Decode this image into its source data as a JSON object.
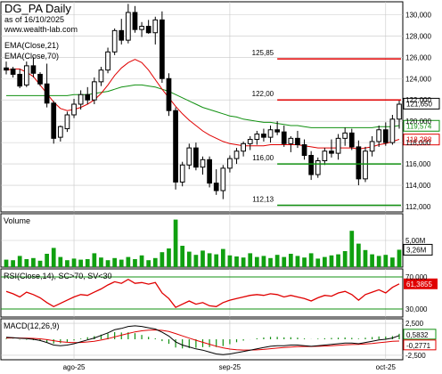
{
  "header": {
    "title": "DG_PA Daily",
    "date_line": "as of 16/10/2025",
    "site": "www.wealth-lab.com"
  },
  "colors": {
    "frame": "#000000",
    "grid": "#c8c8c8",
    "ema21": "#e00000",
    "ema70": "#109010",
    "resistance": "#e00000",
    "support": "#109010",
    "volume": "#10a010",
    "rsi_line": "#e00000",
    "rsi_band": "#109010",
    "macd_line": "#000000",
    "macd_signal": "#e00000",
    "macd_hist": "#109010",
    "close_tag": "#000000",
    "ema70_tag": "#109010",
    "ema21_tag": "#e00000"
  },
  "chart_data": [
    {
      "type": "candlestick",
      "panel": "price",
      "legend": [
        "EMA(Close,21)",
        "EMA(Close,70)"
      ],
      "ylim": [
        111.5,
        131.2
      ],
      "y_ticks": [
        "130,000",
        "128,000",
        "126,000",
        "124,000",
        "122,000",
        "120,000",
        "118,000",
        "116,000",
        "114,000",
        "112,000"
      ],
      "y_tick_values": [
        130,
        128,
        126,
        124,
        122,
        120,
        118,
        116,
        114,
        112
      ],
      "x_labels": [
        "ago-25",
        "sep-25",
        "oct-25"
      ],
      "x_label_bar_index": [
        10,
        33,
        56
      ],
      "candles": [
        {
          "o": 125.0,
          "h": 125.6,
          "l": 124.4,
          "c": 124.8
        },
        {
          "o": 124.9,
          "h": 125.1,
          "l": 124.1,
          "c": 124.4
        },
        {
          "o": 124.4,
          "h": 124.9,
          "l": 123.1,
          "c": 123.3
        },
        {
          "o": 123.4,
          "h": 125.6,
          "l": 123.2,
          "c": 125.2
        },
        {
          "o": 125.2,
          "h": 126.0,
          "l": 124.1,
          "c": 124.5
        },
        {
          "o": 124.4,
          "h": 124.6,
          "l": 123.3,
          "c": 123.5
        },
        {
          "o": 123.5,
          "h": 125.4,
          "l": 121.3,
          "c": 121.7
        },
        {
          "o": 121.7,
          "h": 121.9,
          "l": 117.9,
          "c": 118.4
        },
        {
          "o": 118.5,
          "h": 119.6,
          "l": 118.1,
          "c": 119.5
        },
        {
          "o": 119.3,
          "h": 120.9,
          "l": 119.0,
          "c": 120.6
        },
        {
          "o": 120.6,
          "h": 122.1,
          "l": 120.3,
          "c": 121.6
        },
        {
          "o": 121.6,
          "h": 122.9,
          "l": 121.1,
          "c": 122.5
        },
        {
          "o": 122.5,
          "h": 123.2,
          "l": 121.6,
          "c": 122.0
        },
        {
          "o": 122.0,
          "h": 124.1,
          "l": 121.6,
          "c": 123.7
        },
        {
          "o": 123.7,
          "h": 125.1,
          "l": 123.3,
          "c": 124.8
        },
        {
          "o": 124.8,
          "h": 126.9,
          "l": 124.5,
          "c": 126.5
        },
        {
          "o": 126.5,
          "h": 128.7,
          "l": 126.2,
          "c": 128.5
        },
        {
          "o": 128.5,
          "h": 129.6,
          "l": 127.2,
          "c": 127.6
        },
        {
          "o": 127.6,
          "h": 131.0,
          "l": 127.3,
          "c": 130.2
        },
        {
          "o": 130.2,
          "h": 130.8,
          "l": 128.3,
          "c": 128.6
        },
        {
          "o": 128.6,
          "h": 129.3,
          "l": 127.9,
          "c": 128.9
        },
        {
          "o": 128.9,
          "h": 129.5,
          "l": 128.2,
          "c": 128.3
        },
        {
          "o": 128.3,
          "h": 129.8,
          "l": 127.2,
          "c": 129.5
        },
        {
          "o": 129.5,
          "h": 130.3,
          "l": 123.6,
          "c": 124.0
        },
        {
          "o": 124.0,
          "h": 124.5,
          "l": 120.5,
          "c": 121.0
        },
        {
          "o": 121.0,
          "h": 121.3,
          "l": 113.6,
          "c": 114.3
        },
        {
          "o": 114.3,
          "h": 116.2,
          "l": 113.9,
          "c": 115.9
        },
        {
          "o": 115.9,
          "h": 117.9,
          "l": 115.5,
          "c": 117.5
        },
        {
          "o": 117.5,
          "h": 118.0,
          "l": 115.4,
          "c": 115.7
        },
        {
          "o": 115.7,
          "h": 116.7,
          "l": 115.0,
          "c": 116.4
        },
        {
          "o": 116.4,
          "h": 116.7,
          "l": 113.8,
          "c": 114.2
        },
        {
          "o": 114.2,
          "h": 115.5,
          "l": 113.1,
          "c": 113.5
        },
        {
          "o": 113.5,
          "h": 115.9,
          "l": 112.7,
          "c": 115.6
        },
        {
          "o": 115.6,
          "h": 116.8,
          "l": 115.2,
          "c": 116.5
        },
        {
          "o": 116.5,
          "h": 117.5,
          "l": 116.0,
          "c": 117.2
        },
        {
          "o": 117.2,
          "h": 118.1,
          "l": 116.7,
          "c": 117.9
        },
        {
          "o": 117.9,
          "h": 118.6,
          "l": 117.3,
          "c": 118.3
        },
        {
          "o": 118.3,
          "h": 119.1,
          "l": 117.8,
          "c": 118.8
        },
        {
          "o": 118.8,
          "h": 119.3,
          "l": 118.1,
          "c": 118.5
        },
        {
          "o": 118.5,
          "h": 119.6,
          "l": 118.0,
          "c": 119.2
        },
        {
          "o": 119.2,
          "h": 120.0,
          "l": 118.7,
          "c": 119.0
        },
        {
          "o": 119.0,
          "h": 119.6,
          "l": 117.6,
          "c": 117.9
        },
        {
          "o": 117.9,
          "h": 118.6,
          "l": 117.1,
          "c": 118.4
        },
        {
          "o": 118.4,
          "h": 119.1,
          "l": 117.5,
          "c": 117.8
        },
        {
          "o": 117.8,
          "h": 118.3,
          "l": 116.4,
          "c": 116.8
        },
        {
          "o": 116.8,
          "h": 117.2,
          "l": 114.5,
          "c": 115.0
        },
        {
          "o": 115.0,
          "h": 116.6,
          "l": 114.7,
          "c": 116.3
        },
        {
          "o": 116.3,
          "h": 117.5,
          "l": 115.9,
          "c": 117.2
        },
        {
          "o": 117.2,
          "h": 118.3,
          "l": 116.6,
          "c": 117.0
        },
        {
          "o": 117.0,
          "h": 118.8,
          "l": 116.4,
          "c": 118.4
        },
        {
          "o": 118.4,
          "h": 119.4,
          "l": 117.7,
          "c": 118.9
        },
        {
          "o": 118.9,
          "h": 119.3,
          "l": 117.3,
          "c": 117.6
        },
        {
          "o": 117.6,
          "h": 118.2,
          "l": 114.0,
          "c": 114.6
        },
        {
          "o": 114.6,
          "h": 117.6,
          "l": 114.3,
          "c": 117.2
        },
        {
          "o": 117.2,
          "h": 118.6,
          "l": 116.7,
          "c": 118.1
        },
        {
          "o": 118.1,
          "h": 119.6,
          "l": 117.6,
          "c": 119.2
        },
        {
          "o": 119.2,
          "h": 119.9,
          "l": 117.7,
          "c": 118.0
        },
        {
          "o": 118.0,
          "h": 120.6,
          "l": 117.8,
          "c": 120.2
        },
        {
          "o": 120.2,
          "h": 122.0,
          "l": 119.3,
          "c": 121.6
        }
      ],
      "ema21": [
        124.8,
        124.9,
        124.9,
        124.6,
        124.2,
        123.4,
        122.6,
        121.8,
        121.2,
        121.0,
        121.1,
        121.3,
        121.6,
        122.0,
        122.6,
        123.4,
        124.3,
        125.0,
        125.5,
        125.8,
        125.5,
        124.8,
        123.9,
        123.0,
        122.2,
        121.4,
        120.7,
        120.1,
        119.6,
        119.1,
        118.7,
        118.4,
        118.1,
        117.9,
        117.8,
        117.7,
        117.7,
        117.7,
        117.7,
        117.8,
        117.8,
        117.8,
        117.8,
        117.8,
        117.7,
        117.6,
        117.5,
        117.5,
        117.5,
        117.5,
        117.5,
        117.5,
        117.4,
        117.5,
        117.6,
        117.8,
        117.9,
        118.1,
        118.3
      ],
      "ema70": [
        122.4,
        122.4,
        122.4,
        122.4,
        122.4,
        122.4,
        122.4,
        122.4,
        122.4,
        122.4,
        122.5,
        122.5,
        122.5,
        122.6,
        122.7,
        122.8,
        123.0,
        123.2,
        123.3,
        123.4,
        123.4,
        123.3,
        123.2,
        123.0,
        122.8,
        122.5,
        122.2,
        121.9,
        121.6,
        121.3,
        121.1,
        120.9,
        120.7,
        120.5,
        120.4,
        120.2,
        120.1,
        120.0,
        119.9,
        119.9,
        119.8,
        119.7,
        119.6,
        119.6,
        119.5,
        119.4,
        119.4,
        119.4,
        119.4,
        119.4,
        119.4,
        119.4,
        119.4,
        119.4,
        119.4,
        119.5,
        119.5,
        119.5,
        119.6
      ],
      "levels": [
        {
          "label": "125,85",
          "value": 125.85,
          "role": "resistance",
          "from_bar": 40
        },
        {
          "label": "122,00",
          "value": 122.0,
          "role": "resistance",
          "from_bar": 40
        },
        {
          "label": "116,00",
          "value": 116.0,
          "role": "support",
          "from_bar": 40
        },
        {
          "label": "112,13",
          "value": 112.13,
          "role": "support",
          "from_bar": 40
        }
      ],
      "value_tags": [
        {
          "label": "121,650",
          "value": 121.65,
          "role": "close"
        },
        {
          "label": "119,574",
          "value": 119.574,
          "role": "ema70"
        },
        {
          "label": "118,288",
          "value": 118.288,
          "role": "ema21"
        }
      ]
    },
    {
      "type": "bar",
      "panel": "volume",
      "label": "Volume",
      "ylim": [
        0,
        10000000
      ],
      "y_ticks": [
        "5,00M"
      ],
      "y_tick_values": [
        5000000
      ],
      "last_tag": "3,26M",
      "values": [
        1400000,
        1300000,
        2100000,
        1500000,
        1700000,
        1200000,
        2500000,
        3600000,
        1900000,
        1300000,
        1600000,
        1400000,
        1500000,
        2600000,
        1800000,
        1300000,
        1700000,
        1400000,
        1900000,
        1500000,
        2200000,
        1300000,
        1700000,
        2800000,
        3500000,
        8900000,
        4000000,
        2900000,
        2300000,
        3100000,
        2600000,
        2400000,
        3400000,
        2200000,
        2000000,
        1800000,
        2600000,
        1900000,
        2100000,
        1700000,
        2300000,
        1900000,
        2500000,
        2100000,
        1800000,
        2600000,
        1600000,
        1900000,
        2200000,
        2400000,
        3000000,
        6800000,
        4400000,
        3200000,
        2400000,
        2100000,
        2300000,
        1800000,
        3260000
      ]
    },
    {
      "type": "line",
      "panel": "rsi",
      "label": "RSI(Close,14), SC>70, SV<30",
      "ylim": [
        20,
        80
      ],
      "y_ticks": [
        "70,000",
        "30,000"
      ],
      "y_tick_values": [
        70,
        30
      ],
      "bands": [
        70,
        30
      ],
      "last_tag": "61,3855",
      "values": [
        52,
        49,
        45,
        51,
        48,
        44,
        38,
        33,
        37,
        41,
        45,
        48,
        47,
        51,
        55,
        60,
        64,
        62,
        67,
        62,
        63,
        61,
        63,
        50,
        43,
        32,
        36,
        40,
        36,
        38,
        34,
        33,
        38,
        41,
        43,
        45,
        47,
        48,
        47,
        49,
        48,
        45,
        47,
        45,
        43,
        40,
        44,
        47,
        46,
        50,
        52,
        48,
        41,
        48,
        51,
        54,
        50,
        57,
        61.3855
      ]
    },
    {
      "type": "line",
      "panel": "macd",
      "label": "MACD(12,26,9)",
      "ylim": [
        -3.2,
        3.2
      ],
      "y_ticks": [
        "2,500",
        "-2,500"
      ],
      "y_tick_values": [
        2.5,
        -2.5
      ],
      "last_tags": [
        "0,5832",
        "-0,2771"
      ],
      "macd": [
        0.3,
        0.25,
        0.15,
        0.1,
        0.0,
        -0.2,
        -0.5,
        -0.9,
        -1.0,
        -0.9,
        -0.7,
        -0.4,
        -0.1,
        0.2,
        0.6,
        1.0,
        1.5,
        1.7,
        2.0,
        2.1,
        2.0,
        1.8,
        1.6,
        1.1,
        0.5,
        -0.4,
        -0.9,
        -1.2,
        -1.5,
        -1.7,
        -2.0,
        -2.3,
        -2.4,
        -2.3,
        -2.1,
        -1.9,
        -1.7,
        -1.5,
        -1.3,
        -1.1,
        -1.0,
        -1.0,
        -0.9,
        -0.9,
        -1.0,
        -1.1,
        -1.0,
        -0.9,
        -0.8,
        -0.7,
        -0.6,
        -0.6,
        -0.7,
        -0.5,
        -0.3,
        -0.1,
        0.0,
        0.2,
        0.58
      ],
      "signal": [
        0.2,
        0.22,
        0.2,
        0.18,
        0.14,
        0.07,
        -0.05,
        -0.22,
        -0.38,
        -0.48,
        -0.52,
        -0.5,
        -0.42,
        -0.3,
        -0.12,
        0.1,
        0.38,
        0.64,
        0.91,
        1.15,
        1.32,
        1.42,
        1.46,
        1.39,
        1.21,
        0.89,
        0.53,
        0.18,
        -0.16,
        -0.47,
        -0.78,
        -1.08,
        -1.34,
        -1.53,
        -1.64,
        -1.69,
        -1.69,
        -1.65,
        -1.58,
        -1.48,
        -1.38,
        -1.3,
        -1.22,
        -1.16,
        -1.13,
        -1.12,
        -1.1,
        -1.06,
        -1.01,
        -0.95,
        -0.88,
        -0.82,
        -0.8,
        -0.74,
        -0.65,
        -0.54,
        -0.43,
        -0.3,
        -0.2771
      ]
    }
  ]
}
